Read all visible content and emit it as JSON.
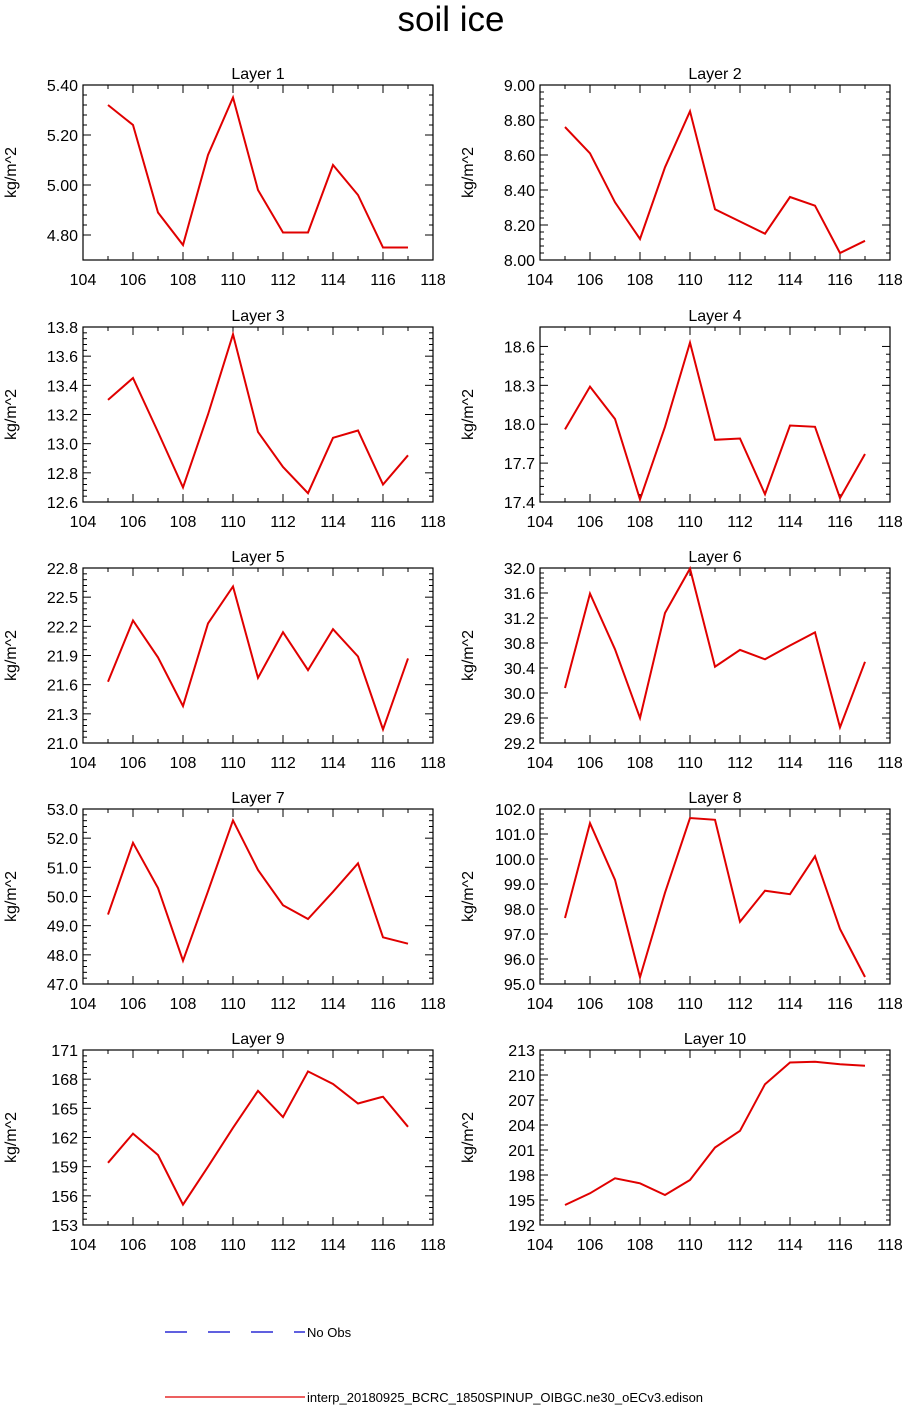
{
  "page_title": "soil ice",
  "legend": [
    {
      "label": "No Obs",
      "color": "#0000cc",
      "style": "dashed"
    },
    {
      "label": "interp_20180925_BCRC_1850SPINUP_OIBGC.ne30_oECv3.edison",
      "color": "#e00000",
      "style": "solid"
    }
  ],
  "chart_data": [
    {
      "type": "line",
      "title": "Layer 1",
      "ylabel": "kg/m^2",
      "xlim": [
        104,
        118
      ],
      "xticks": [
        "104",
        "106",
        "108",
        "110",
        "112",
        "114",
        "116",
        "118"
      ],
      "ylim": [
        4.7,
        5.4
      ],
      "yticks": [
        "4.80",
        "5.00",
        "5.20",
        "5.40"
      ],
      "series": [
        {
          "color": "#e00000",
          "x": [
            105,
            106,
            107,
            108,
            109,
            110,
            111,
            112,
            113,
            114,
            115,
            116,
            117
          ],
          "values": [
            5.32,
            5.24,
            4.89,
            4.76,
            5.12,
            5.35,
            4.98,
            4.81,
            4.81,
            5.08,
            4.96,
            4.75,
            4.75
          ]
        }
      ]
    },
    {
      "type": "line",
      "title": "Layer 2",
      "ylabel": "kg/m^2",
      "xlim": [
        104,
        118
      ],
      "xticks": [
        "104",
        "106",
        "108",
        "110",
        "112",
        "114",
        "116",
        "118"
      ],
      "ylim": [
        8.0,
        9.0
      ],
      "yticks": [
        "8.00",
        "8.20",
        "8.40",
        "8.60",
        "8.80",
        "9.00"
      ],
      "series": [
        {
          "color": "#e00000",
          "x": [
            105,
            106,
            107,
            108,
            109,
            110,
            111,
            112,
            113,
            114,
            115,
            116,
            117
          ],
          "values": [
            8.76,
            8.61,
            8.33,
            8.12,
            8.53,
            8.85,
            8.29,
            8.22,
            8.15,
            8.36,
            8.31,
            8.04,
            8.11
          ]
        }
      ]
    },
    {
      "type": "line",
      "title": "Layer 3",
      "ylabel": "kg/m^2",
      "xlim": [
        104,
        118
      ],
      "xticks": [
        "104",
        "106",
        "108",
        "110",
        "112",
        "114",
        "116",
        "118"
      ],
      "ylim": [
        12.6,
        13.8
      ],
      "yticks": [
        "12.6",
        "12.8",
        "13.0",
        "13.2",
        "13.4",
        "13.6",
        "13.8"
      ],
      "series": [
        {
          "color": "#e00000",
          "x": [
            105,
            106,
            107,
            108,
            109,
            110,
            111,
            112,
            113,
            114,
            115,
            116,
            117
          ],
          "values": [
            13.3,
            13.45,
            13.08,
            12.7,
            13.2,
            13.75,
            13.08,
            12.84,
            12.66,
            13.04,
            13.09,
            12.72,
            12.92
          ]
        }
      ]
    },
    {
      "type": "line",
      "title": "Layer 4",
      "ylabel": "kg/m^2",
      "xlim": [
        104,
        118
      ],
      "xticks": [
        "104",
        "106",
        "108",
        "110",
        "112",
        "114",
        "116",
        "118"
      ],
      "ylim": [
        17.4,
        18.75
      ],
      "yticks": [
        "17.4",
        "17.7",
        "18.0",
        "18.3",
        "18.6"
      ],
      "series": [
        {
          "color": "#e00000",
          "x": [
            105,
            106,
            107,
            108,
            109,
            110,
            111,
            112,
            113,
            114,
            115,
            116,
            117
          ],
          "values": [
            17.96,
            18.29,
            18.04,
            17.42,
            17.98,
            18.63,
            17.88,
            17.89,
            17.46,
            17.99,
            17.98,
            17.43,
            17.77
          ]
        }
      ]
    },
    {
      "type": "line",
      "title": "Layer 5",
      "ylabel": "kg/m^2",
      "xlim": [
        104,
        118
      ],
      "xticks": [
        "104",
        "106",
        "108",
        "110",
        "112",
        "114",
        "116",
        "118"
      ],
      "ylim": [
        21.0,
        22.8
      ],
      "yticks": [
        "21.0",
        "21.3",
        "21.6",
        "21.9",
        "22.2",
        "22.5",
        "22.8"
      ],
      "series": [
        {
          "color": "#e00000",
          "x": [
            105,
            106,
            107,
            108,
            109,
            110,
            111,
            112,
            113,
            114,
            115,
            116,
            117
          ],
          "values": [
            21.63,
            22.26,
            21.88,
            21.38,
            22.23,
            22.61,
            21.67,
            22.14,
            21.75,
            22.17,
            21.89,
            21.14,
            21.87
          ]
        }
      ]
    },
    {
      "type": "line",
      "title": "Layer 6",
      "ylabel": "kg/m^2",
      "xlim": [
        104,
        118
      ],
      "xticks": [
        "104",
        "106",
        "108",
        "110",
        "112",
        "114",
        "116",
        "118"
      ],
      "ylim": [
        29.2,
        32.0
      ],
      "yticks": [
        "29.2",
        "29.6",
        "30.0",
        "30.4",
        "30.8",
        "31.2",
        "31.6",
        "32.0"
      ],
      "series": [
        {
          "color": "#e00000",
          "x": [
            105,
            106,
            107,
            108,
            109,
            110,
            111,
            112,
            113,
            114,
            115,
            116,
            117
          ],
          "values": [
            30.08,
            31.59,
            30.7,
            29.6,
            31.28,
            31.99,
            30.42,
            30.69,
            30.54,
            30.76,
            30.97,
            29.45,
            30.5
          ]
        }
      ]
    },
    {
      "type": "line",
      "title": "Layer 7",
      "ylabel": "kg/m^2",
      "xlim": [
        104,
        118
      ],
      "xticks": [
        "104",
        "106",
        "108",
        "110",
        "112",
        "114",
        "116",
        "118"
      ],
      "ylim": [
        47.0,
        53.0
      ],
      "yticks": [
        "47.0",
        "48.0",
        "49.0",
        "50.0",
        "51.0",
        "52.0",
        "53.0"
      ],
      "series": [
        {
          "color": "#e00000",
          "x": [
            105,
            106,
            107,
            108,
            109,
            110,
            111,
            112,
            113,
            114,
            115,
            116,
            117
          ],
          "values": [
            49.38,
            51.84,
            50.29,
            47.8,
            50.18,
            52.61,
            50.91,
            49.7,
            49.23,
            50.16,
            51.14,
            48.6,
            48.38
          ]
        }
      ]
    },
    {
      "type": "line",
      "title": "Layer 8",
      "ylabel": "kg/m^2",
      "xlim": [
        104,
        118
      ],
      "xticks": [
        "104",
        "106",
        "108",
        "110",
        "112",
        "114",
        "116",
        "118"
      ],
      "ylim": [
        95.0,
        102.0
      ],
      "yticks": [
        "95.0",
        "96.0",
        "97.0",
        "98.0",
        "99.0",
        "100.0",
        "101.0",
        "102.0"
      ],
      "series": [
        {
          "color": "#e00000",
          "x": [
            105,
            106,
            107,
            108,
            109,
            110,
            111,
            112,
            113,
            114,
            115,
            116,
            117
          ],
          "values": [
            97.64,
            101.43,
            99.17,
            95.27,
            98.65,
            101.64,
            101.57,
            97.49,
            98.73,
            98.59,
            100.11,
            97.2,
            95.28
          ]
        }
      ]
    },
    {
      "type": "line",
      "title": "Layer 9",
      "ylabel": "kg/m^2",
      "xlim": [
        104,
        118
      ],
      "xticks": [
        "104",
        "106",
        "108",
        "110",
        "112",
        "114",
        "116",
        "118"
      ],
      "ylim": [
        153,
        171
      ],
      "yticks": [
        "153",
        "156",
        "159",
        "162",
        "165",
        "168",
        "171"
      ],
      "series": [
        {
          "color": "#e00000",
          "x": [
            105,
            106,
            107,
            108,
            109,
            110,
            111,
            112,
            113,
            114,
            115,
            116,
            117
          ],
          "values": [
            159.4,
            162.4,
            160.2,
            155.1,
            159.0,
            163.0,
            166.8,
            164.1,
            168.8,
            167.5,
            165.5,
            166.2,
            163.1
          ]
        }
      ]
    },
    {
      "type": "line",
      "title": "Layer 10",
      "ylabel": "kg/m^2",
      "xlim": [
        104,
        118
      ],
      "xticks": [
        "104",
        "106",
        "108",
        "110",
        "112",
        "114",
        "116",
        "118"
      ],
      "ylim": [
        192,
        213
      ],
      "yticks": [
        "192",
        "195",
        "198",
        "201",
        "204",
        "207",
        "210",
        "213"
      ],
      "series": [
        {
          "color": "#e00000",
          "x": [
            105,
            106,
            107,
            108,
            109,
            110,
            111,
            112,
            113,
            114,
            115,
            116,
            117
          ],
          "values": [
            194.4,
            195.8,
            197.6,
            197.0,
            195.6,
            197.4,
            201.3,
            203.3,
            208.9,
            211.5,
            211.6,
            211.3,
            211.1
          ]
        }
      ]
    }
  ]
}
